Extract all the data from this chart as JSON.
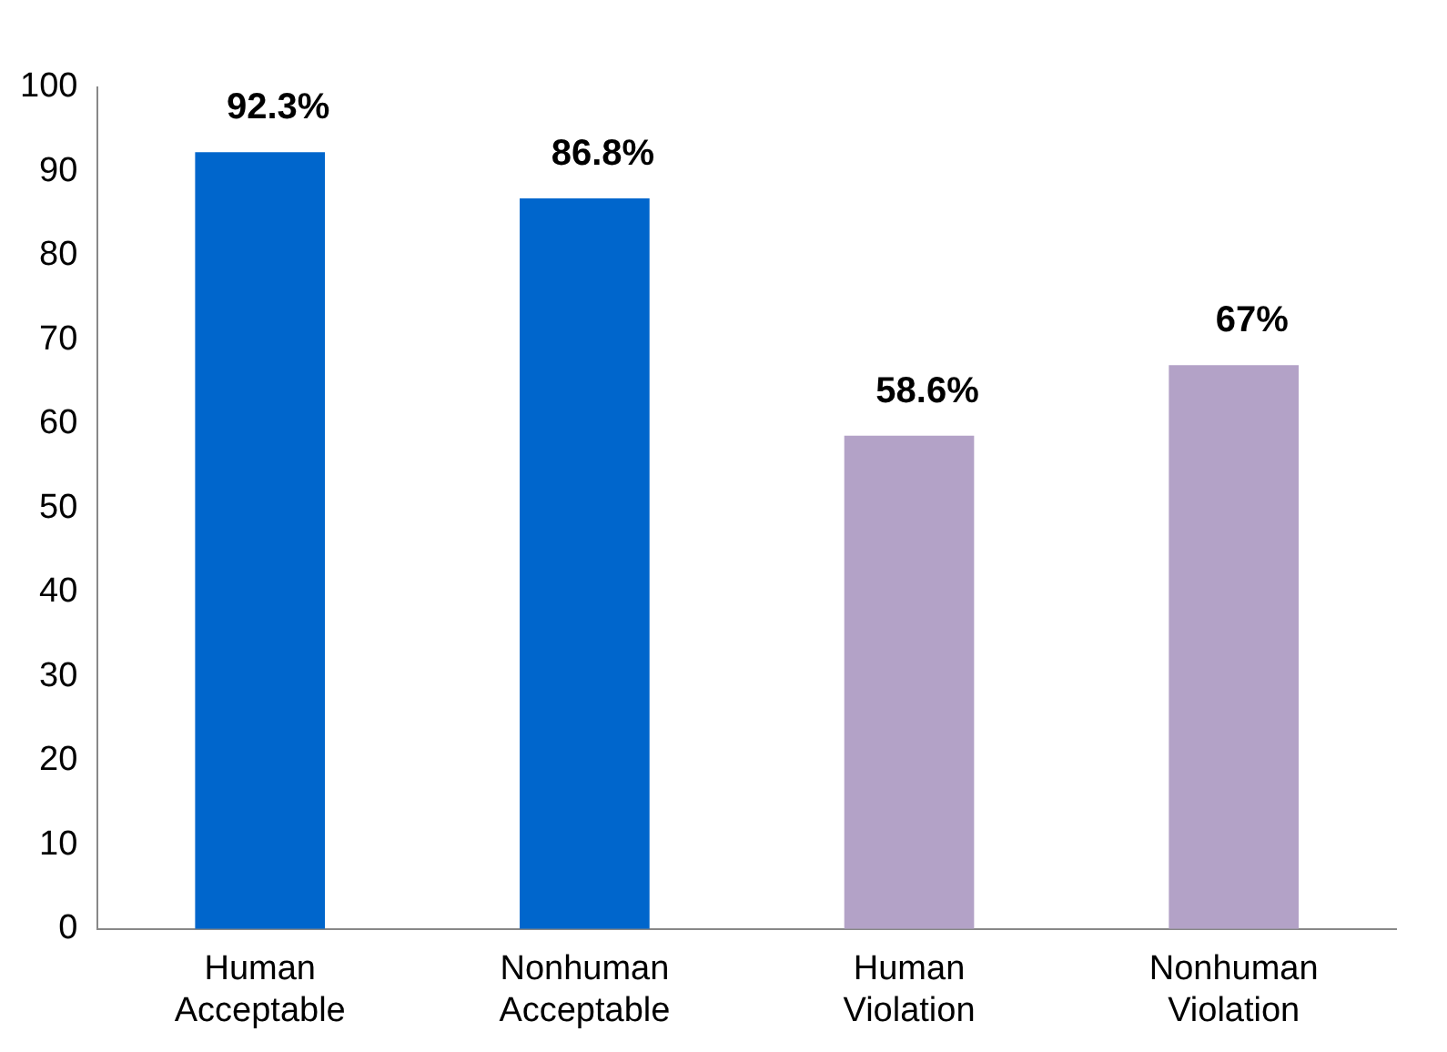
{
  "chart_data": {
    "type": "bar",
    "categories": [
      "Human Acceptable",
      "Nonhuman Acceptable",
      "Human Violation",
      "Nonhuman Violation"
    ],
    "values": [
      92.3,
      86.8,
      58.6,
      67
    ],
    "colors": [
      "#0066cc",
      "#0066cc",
      "#b3a2c7",
      "#b3a2c7"
    ],
    "value_labels": [
      "92.3%",
      "86.8%",
      "58.6%",
      "67%"
    ],
    "ylim": [
      0,
      100
    ],
    "yticks": [
      0,
      10,
      20,
      30,
      40,
      50,
      60,
      70,
      80,
      90,
      100
    ],
    "grid": false,
    "legend": false
  }
}
